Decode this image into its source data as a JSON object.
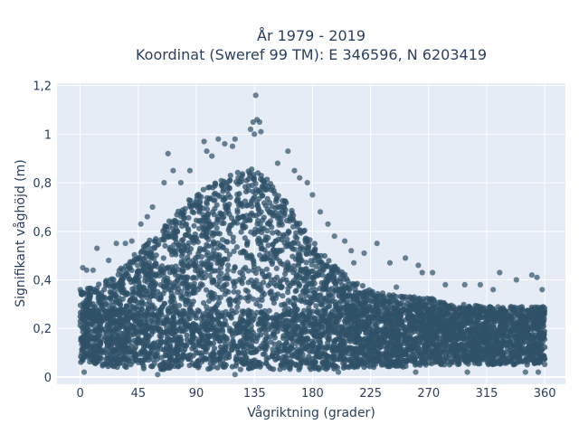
{
  "chart_data": {
    "type": "scatter",
    "title_line1": "År 1979 - 2019",
    "title_line2": "Koordinat (Sweref 99 TM): E 346596, N 6203419",
    "xlabel": "Vågriktning (grader)",
    "ylabel": "Signifikant våghöjd (m)",
    "xlim": [
      -18,
      376
    ],
    "ylim": [
      -0.03,
      1.21
    ],
    "x_ticks": [
      0,
      45,
      90,
      135,
      180,
      225,
      270,
      315,
      360
    ],
    "y_ticks": [
      0,
      0.2,
      0.4,
      0.6,
      0.8,
      1,
      1.2
    ],
    "y_tick_labels": [
      "0",
      "0,2",
      "0,4",
      "0,6",
      "0,8",
      "1",
      "1,2"
    ],
    "grid": true,
    "legend": "none",
    "marker_color": "#2f5168",
    "series": [
      {
        "envelope_direction_deg": [
          0,
          10,
          20,
          30,
          45,
          60,
          75,
          90,
          105,
          120,
          135,
          150,
          165,
          180,
          195,
          210,
          225,
          240,
          255,
          270,
          285,
          300,
          315,
          330,
          345,
          360
        ],
        "envelope_max_height_m": [
          0.36,
          0.37,
          0.4,
          0.44,
          0.52,
          0.6,
          0.68,
          0.76,
          0.8,
          0.84,
          0.86,
          0.8,
          0.68,
          0.56,
          0.47,
          0.4,
          0.36,
          0.34,
          0.33,
          0.33,
          0.3,
          0.3,
          0.29,
          0.29,
          0.29,
          0.29
        ],
        "envelope_min_height_m": [
          0.06,
          0.05,
          0.04,
          0.04,
          0.03,
          0.03,
          0.03,
          0.03,
          0.03,
          0.03,
          0.03,
          0.03,
          0.03,
          0.03,
          0.03,
          0.04,
          0.04,
          0.04,
          0.04,
          0.05,
          0.05,
          0.05,
          0.05,
          0.05,
          0.05,
          0.05
        ],
        "outliers": [
          [
            136,
            1.16
          ],
          [
            137,
            1.06
          ],
          [
            139,
            1.05
          ],
          [
            134,
            1.05
          ],
          [
            132,
            1.02
          ],
          [
            140,
            1.01
          ],
          [
            135,
            1.0
          ],
          [
            120,
            0.98
          ],
          [
            96,
            0.97
          ],
          [
            107,
            0.98
          ],
          [
            112,
            0.96
          ],
          [
            98,
            0.93
          ],
          [
            102,
            0.91
          ],
          [
            118,
            0.95
          ],
          [
            161,
            0.93
          ],
          [
            153,
            0.88
          ],
          [
            166,
            0.85
          ],
          [
            170,
            0.82
          ],
          [
            176,
            0.8
          ],
          [
            180,
            0.75
          ],
          [
            186,
            0.68
          ],
          [
            192,
            0.63
          ],
          [
            197,
            0.58
          ],
          [
            205,
            0.56
          ],
          [
            210,
            0.52
          ],
          [
            220,
            0.51
          ],
          [
            230,
            0.55
          ],
          [
            212,
            0.47
          ],
          [
            240,
            0.47
          ],
          [
            252,
            0.49
          ],
          [
            262,
            0.46
          ],
          [
            273,
            0.43
          ],
          [
            283,
            0.38
          ],
          [
            298,
            0.38
          ],
          [
            310,
            0.38
          ],
          [
            320,
            0.36
          ],
          [
            325,
            0.43
          ],
          [
            338,
            0.4
          ],
          [
            350,
            0.42
          ],
          [
            354,
            0.41
          ],
          [
            358,
            0.36
          ],
          [
            68,
            0.92
          ],
          [
            72,
            0.85
          ],
          [
            85,
            0.85
          ],
          [
            78,
            0.8
          ],
          [
            65,
            0.8
          ],
          [
            56,
            0.7
          ],
          [
            52,
            0.66
          ],
          [
            47,
            0.63
          ],
          [
            40,
            0.56
          ],
          [
            35,
            0.55
          ],
          [
            28,
            0.55
          ],
          [
            22,
            0.48
          ],
          [
            13,
            0.53
          ],
          [
            10,
            0.44
          ],
          [
            5,
            0.44
          ],
          [
            2,
            0.45
          ],
          [
            0,
            0.36
          ],
          [
            1,
            0.34
          ],
          [
            3,
            0.02
          ],
          [
            120,
            0.01
          ],
          [
            300,
            0.02
          ],
          [
            345,
            0.02
          ],
          [
            355,
            0.02
          ],
          [
            260,
            0.02
          ],
          [
            200,
            0.02
          ],
          [
            60,
            0.01
          ],
          [
            245,
            0.37
          ],
          [
            265,
            0.43
          ]
        ]
      }
    ]
  }
}
